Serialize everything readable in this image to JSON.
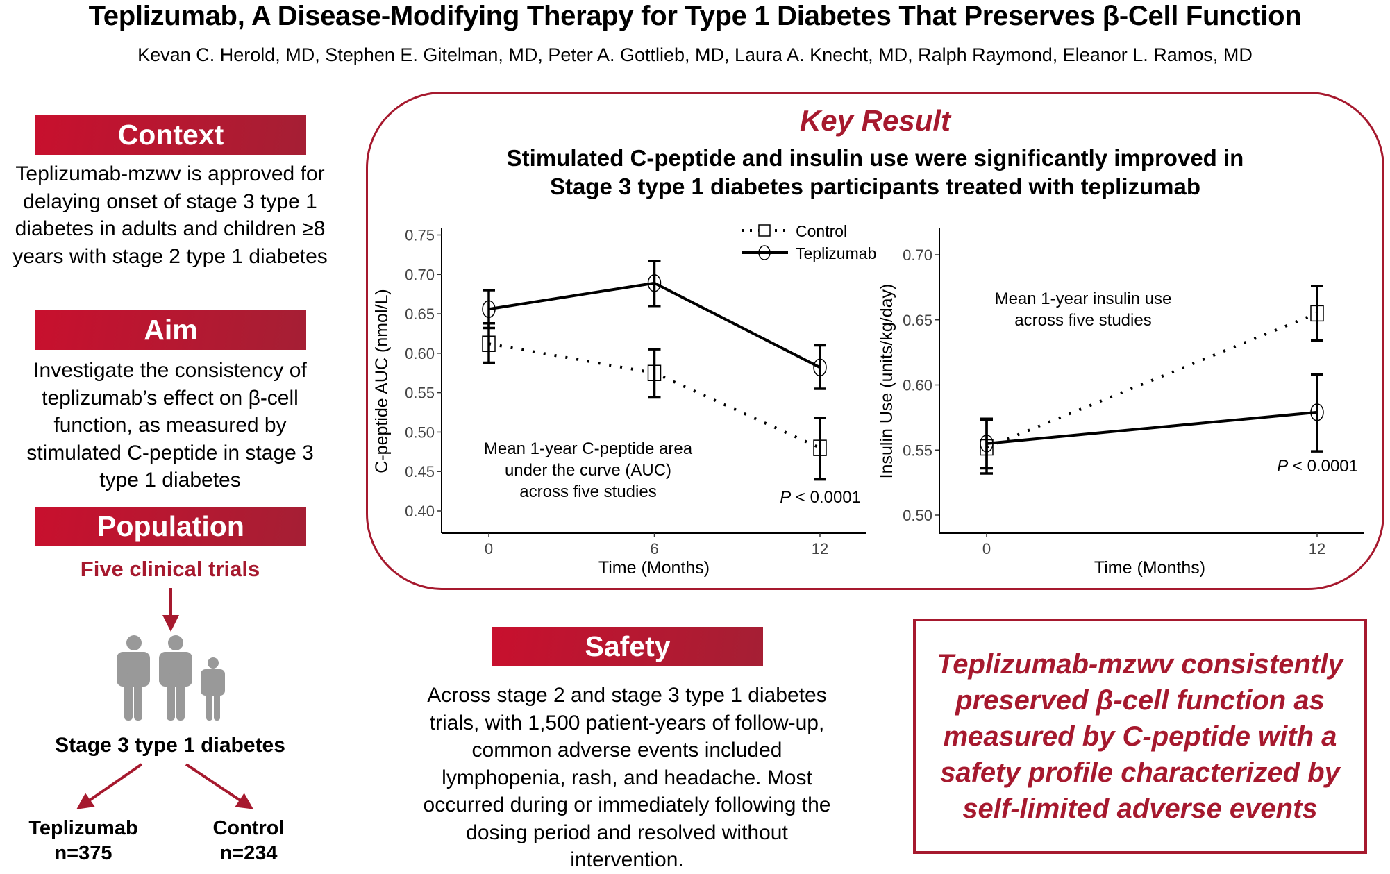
{
  "header": {
    "title": "Teplizumab, A Disease-Modifying Therapy for Type 1 Diabetes That Preserves β-Cell Function",
    "authors": "Kevan C. Herold, MD, Stephen E. Gitelman, MD, Peter A. Gottlieb, MD, Laura A. Knecht, MD, Ralph Raymond, Eleanor L. Ramos, MD"
  },
  "colors": {
    "accent_red": "#a6192e",
    "header_gradient_start": "#c8102e",
    "header_gradient_end": "#a51f34",
    "person_icon": "#999999"
  },
  "context": {
    "heading": "Context",
    "text": "Teplizumab-mzwv is approved for delaying onset of stage 3 type 1 diabetes in adults and children ≥8 years with stage 2 type 1 diabetes"
  },
  "aim": {
    "heading": "Aim",
    "text": "Investigate the consistency of teplizumab’s effect on β-cell function, as measured by stimulated C-peptide in stage 3 type 1 diabetes"
  },
  "population": {
    "heading": "Population",
    "source": "Five clinical trials",
    "icon": "people-icon",
    "cohort": "Stage 3 type 1 diabetes",
    "arms": [
      {
        "name": "Teplizumab",
        "n": "n=375"
      },
      {
        "name": "Control",
        "n": "n=234"
      }
    ]
  },
  "key_result": {
    "title": "Key Result",
    "subtitle_line1": "Stimulated C-peptide and insulin use were significantly improved in",
    "subtitle_line2": "Stage 3 type 1 diabetes participants treated with teplizumab"
  },
  "chart_data": [
    {
      "type": "line",
      "xlabel": "Time (Months)",
      "ylabel": "C-peptide AUC (nmol/L)",
      "x": [
        0,
        6,
        12
      ],
      "xticks": [
        "0",
        "6",
        "12"
      ],
      "yticks": [
        "0.40",
        "0.45",
        "0.50",
        "0.55",
        "0.60",
        "0.65",
        "0.70",
        "0.75"
      ],
      "ylim": [
        0.4,
        0.75
      ],
      "grid": false,
      "legend": "top-right",
      "annotation": [
        "Mean 1-year C-peptide area",
        "under the curve (AUC)",
        "across five studies"
      ],
      "p_label": "P",
      "p_value": " < 0.0001",
      "series": [
        {
          "name": "Control",
          "style": "dotted",
          "marker": "square",
          "values": [
            0.612,
            0.575,
            0.48
          ],
          "lower": [
            0.588,
            0.544,
            0.44
          ],
          "upper": [
            0.638,
            0.605,
            0.518
          ]
        },
        {
          "name": "Teplizumab",
          "style": "solid",
          "marker": "circle",
          "values": [
            0.656,
            0.689,
            0.582
          ],
          "lower": [
            0.632,
            0.66,
            0.555
          ],
          "upper": [
            0.68,
            0.717,
            0.61
          ]
        }
      ]
    },
    {
      "type": "line",
      "xlabel": "Time (Months)",
      "ylabel": "Insulin Use (units/kg/day)",
      "x": [
        0,
        12
      ],
      "xticks": [
        "0",
        "12"
      ],
      "yticks": [
        "0.50",
        "0.55",
        "0.60",
        "0.65",
        "0.70"
      ],
      "ylim": [
        0.5,
        0.7
      ],
      "grid": false,
      "annotation": [
        "Mean 1-year insulin use",
        "across five studies"
      ],
      "p_label": "P",
      "p_value": " < 0.0001",
      "series": [
        {
          "name": "Control",
          "style": "dotted",
          "marker": "square",
          "values": [
            0.552,
            0.655
          ],
          "lower": [
            0.532,
            0.634
          ],
          "upper": [
            0.574,
            0.676
          ]
        },
        {
          "name": "Teplizumab",
          "style": "solid",
          "marker": "circle",
          "values": [
            0.555,
            0.579
          ],
          "lower": [
            0.536,
            0.549
          ],
          "upper": [
            0.573,
            0.608
          ]
        }
      ]
    }
  ],
  "safety": {
    "heading": "Safety",
    "text": "Across stage 2 and stage 3 type 1 diabetes trials, with 1,500 patient-years of follow-up, common adverse events included lymphopenia, rash, and headache. Most occurred during or immediately following the dosing period and resolved without intervention."
  },
  "conclusion": {
    "text": "Teplizumab-mzwv consistently preserved β-cell function as measured by C-peptide with a safety profile characterized by self-limited adverse events"
  }
}
